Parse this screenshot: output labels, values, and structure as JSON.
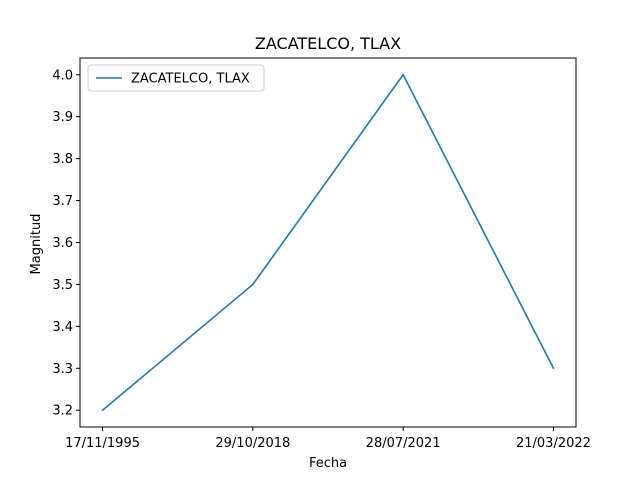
{
  "chart_data": {
    "type": "line",
    "title": "ZACATELCO, TLAX",
    "xlabel": "Fecha",
    "ylabel": "Magnitud",
    "categories": [
      "17/11/1995",
      "29/10/2018",
      "28/07/2021",
      "21/03/2022"
    ],
    "series": [
      {
        "name": "ZACATELCO, TLAX",
        "values": [
          3.2,
          3.5,
          4.0,
          3.3
        ],
        "color": "#1f77b4"
      }
    ],
    "ylim": [
      3.16,
      4.04
    ],
    "yticks": [
      "3.2",
      "3.3",
      "3.4",
      "3.5",
      "3.6",
      "3.7",
      "3.8",
      "3.9",
      "4.0"
    ],
    "grid": false,
    "legend_position": "top-left"
  }
}
